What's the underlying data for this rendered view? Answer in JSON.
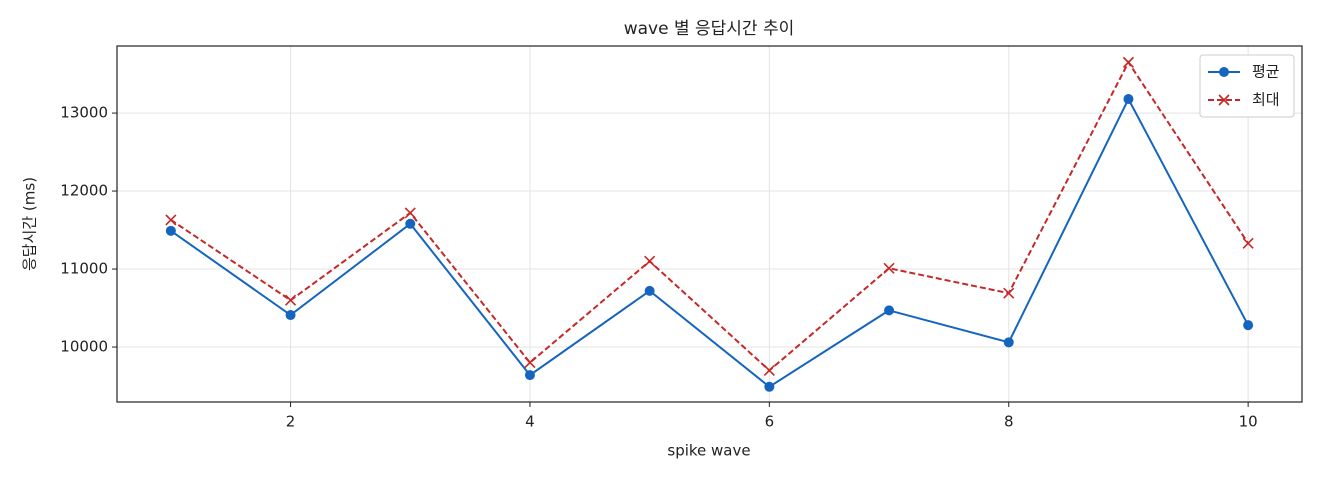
{
  "chart_data": {
    "type": "line",
    "title": "wave 별 응답시간 추이",
    "xlabel": "spike wave",
    "ylabel": "응답시간 (ms)",
    "x": [
      1,
      2,
      3,
      4,
      5,
      6,
      7,
      8,
      9,
      10
    ],
    "series": [
      {
        "name": "평균",
        "color": "#1565c0",
        "marker": "o",
        "linestyle": "solid",
        "values": [
          11490,
          10410,
          11580,
          9640,
          10720,
          9490,
          10470,
          10060,
          13180,
          10280
        ]
      },
      {
        "name": "최대",
        "color": "#c62828",
        "marker": "x",
        "linestyle": "dashed",
        "values": [
          11630,
          10600,
          11720,
          9800,
          11100,
          9700,
          11010,
          10690,
          13650,
          11330
        ]
      }
    ],
    "xlim": [
      0.55,
      10.45
    ],
    "xticks": [
      2,
      4,
      6,
      8,
      10
    ],
    "ylim": [
      9295,
      13860
    ],
    "yticks": [
      10000,
      11000,
      12000,
      13000
    ],
    "grid": true,
    "legend": "upper right"
  }
}
